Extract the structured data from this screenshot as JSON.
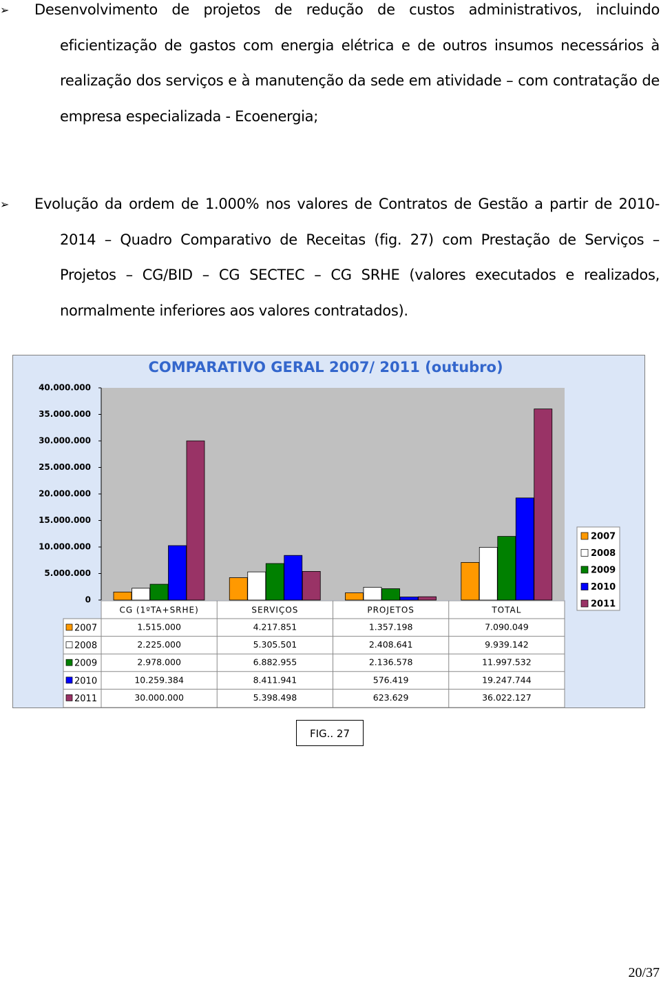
{
  "paragraphs": [
    "Desenvolvimento de projetos de redução de custos administrativos, incluindo eficientização de gastos com energia elétrica e de outros insumos necessários à realização dos serviços e à manutenção da sede em atividade – com contratação de empresa especializada - Ecoenergia;",
    "Evolução da ordem de 1.000% nos valores de Contratos de Gestão a partir de 2010-2014 – Quadro Comparativo de Receitas (fig. 27) com Prestação de Serviços – Projetos – CG/BID – CG SECTEC – CG SRHE (valores executados e realizados, normalmente inferiores aos valores contratados)."
  ],
  "chart_data": {
    "type": "bar",
    "title": "COMPARATIVO GERAL 2007/ 2011 (outubro)",
    "categories": [
      "CG (1ºTA+SRHE)",
      "SERVIÇOS",
      "PROJETOS",
      "TOTAL"
    ],
    "series": [
      {
        "name": "2007",
        "color": "#ff9900",
        "values": [
          1515000,
          4217851,
          1357198,
          7090049
        ],
        "value_labels": [
          "1.515.000",
          "4.217.851",
          "1.357.198",
          "7.090.049"
        ]
      },
      {
        "name": "2008",
        "color": "#ffffff",
        "values": [
          2225000,
          5305501,
          2408641,
          9939142
        ],
        "value_labels": [
          "2.225.000",
          "5.305.501",
          "2.408.641",
          "9.939.142"
        ]
      },
      {
        "name": "2009",
        "color": "#008000",
        "values": [
          2978000,
          6882955,
          2136578,
          11997532
        ],
        "value_labels": [
          "2.978.000",
          "6.882.955",
          "2.136.578",
          "11.997.532"
        ]
      },
      {
        "name": "2010",
        "color": "#0000ff",
        "values": [
          10259384,
          8411941,
          576419,
          19247744
        ],
        "value_labels": [
          "10.259.384",
          "8.411.941",
          "576.419",
          "19.247.744"
        ]
      },
      {
        "name": "2011",
        "color": "#993366",
        "values": [
          30000000,
          5398498,
          623629,
          36022127
        ],
        "value_labels": [
          "30.000.000",
          "5.398.498",
          "623.629",
          "36.022.127"
        ]
      }
    ],
    "ylim": [
      0,
      40000000
    ],
    "yticks": [
      0,
      {
        "value": 5000000,
        "label": "5.000.000"
      },
      {
        "value": 10000000,
        "label": "10.000.000"
      },
      {
        "value": 15000000,
        "label": "15.000.000"
      },
      {
        "value": 20000000,
        "label": "20.000.000"
      },
      {
        "value": 25000000,
        "label": "25.000.000"
      },
      {
        "value": 30000000,
        "label": "30.000.000"
      },
      {
        "value": 35000000,
        "label": "35.000.000"
      },
      {
        "value": 40000000,
        "label": "40.000.000"
      }
    ],
    "grid": false,
    "legend": "right"
  },
  "caption": "FIG.. 27",
  "page_number": "20/37"
}
